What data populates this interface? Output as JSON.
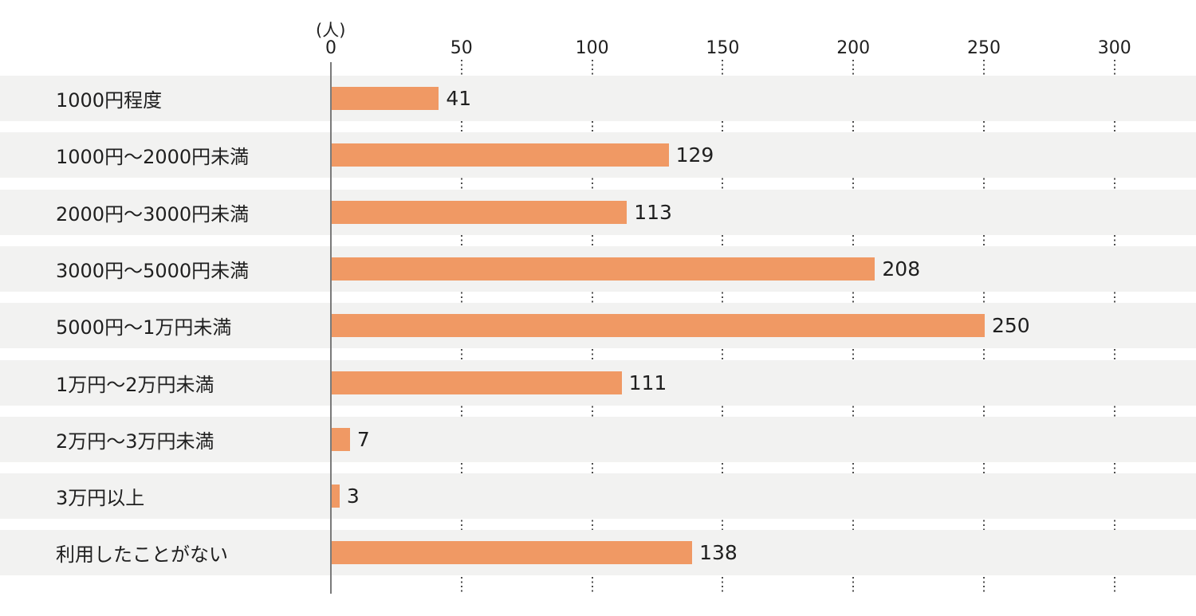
{
  "chart_data": {
    "type": "bar",
    "orientation": "horizontal",
    "title": "",
    "xlabel": "",
    "ylabel": "",
    "unit_label": "(人)",
    "x_ticks": [
      0,
      50,
      100,
      150,
      200,
      250,
      300
    ],
    "xlim": [
      0,
      331
    ],
    "grid": "vertical-dotted",
    "legend": "none",
    "value_labels": "end-of-bar",
    "categories": [
      "1000円程度",
      "1000円〜2000円未満",
      "2000円〜3000円未満",
      "3000円〜5000円未満",
      "5000円〜1万円未満",
      "1万円〜2万円未満",
      "2万円〜3万円未満",
      "3万円以上",
      "利用したことがない"
    ],
    "values": [
      41,
      129,
      113,
      208,
      250,
      111,
      7,
      3,
      138
    ],
    "colors": {
      "bar": "#F09964",
      "row_band": "#F2F2F1",
      "axis_line": "#7A7A7A",
      "gridline_dots": "#4D4D4D",
      "text": "#1F1F1F"
    }
  }
}
